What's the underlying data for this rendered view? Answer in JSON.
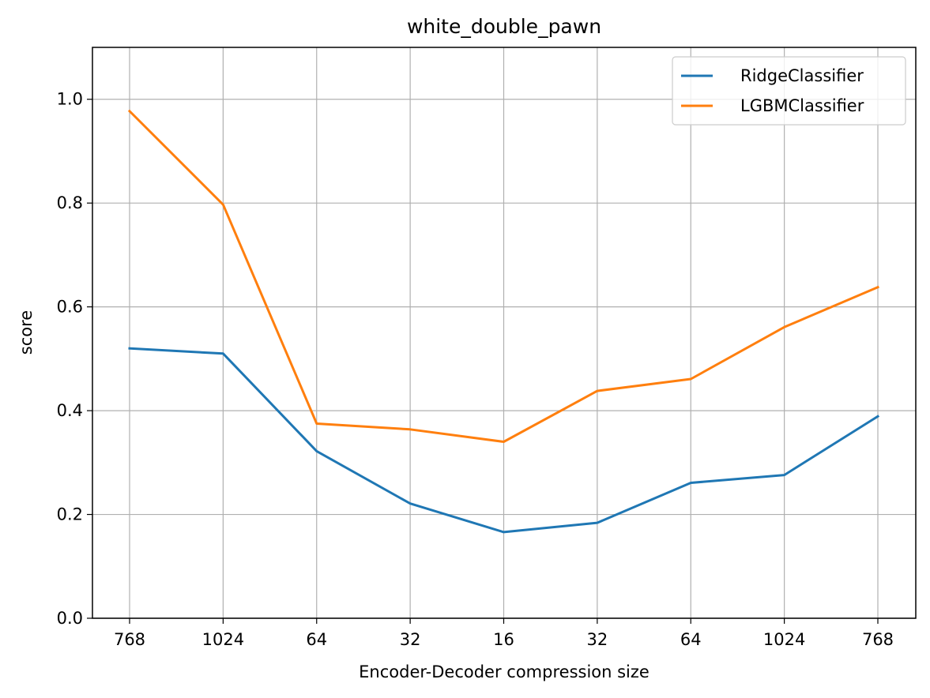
{
  "chart_data": {
    "type": "line",
    "title": "white_double_pawn",
    "xlabel": "Encoder-Decoder compression size",
    "ylabel": "score",
    "categories": [
      "768",
      "1024",
      "64",
      "32",
      "16",
      "32",
      "64",
      "1024",
      "768"
    ],
    "ylim": [
      0,
      1.1
    ],
    "yticks": [
      0.0,
      0.2,
      0.4,
      0.6,
      0.8,
      1.0
    ],
    "ytick_labels": [
      "0.0",
      "0.2",
      "0.4",
      "0.6",
      "0.8",
      "1.0"
    ],
    "grid": true,
    "legend_position": "top-right",
    "series": [
      {
        "name": "RidgeClassifier",
        "color": "#1f77b4",
        "values": [
          0.52,
          0.51,
          0.322,
          0.221,
          0.166,
          0.184,
          0.261,
          0.276,
          0.389
        ]
      },
      {
        "name": "LGBMClassifier",
        "color": "#ff7f0e",
        "values": [
          0.977,
          0.797,
          0.375,
          0.364,
          0.34,
          0.438,
          0.461,
          0.561,
          0.638
        ]
      }
    ]
  }
}
